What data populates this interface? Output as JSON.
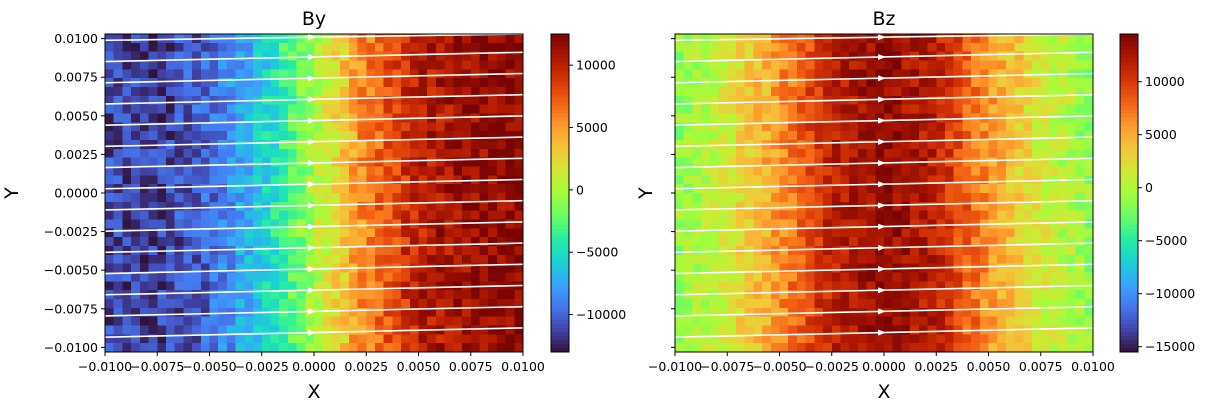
{
  "chart_data": [
    {
      "type": "heatmap",
      "title": "By",
      "xlabel": "X",
      "ylabel": "Y",
      "xlim": [
        -0.01,
        0.01
      ],
      "ylim": [
        -0.0103,
        0.0103
      ],
      "xticks": [
        -0.01,
        -0.0075,
        -0.005,
        -0.0025,
        0.0,
        0.0025,
        0.005,
        0.0075,
        0.01
      ],
      "xtick_labels": [
        "−0.0100",
        "−0.0075",
        "−0.0050",
        "−0.0025",
        "0.0000",
        "0.0025",
        "0.0050",
        "0.0075",
        "0.0100"
      ],
      "yticks": [
        0.01,
        0.0075,
        0.005,
        0.0025,
        0.0,
        -0.0025,
        -0.005,
        -0.0075,
        -0.01
      ],
      "ytick_labels": [
        "0.0100",
        "0.0075",
        "0.0050",
        "0.0025",
        "0.0000",
        "−0.0025",
        "−0.0050",
        "−0.0075",
        "−0.0100"
      ],
      "colormap": "turbo",
      "color_range": [
        -13000,
        12500
      ],
      "colorbar_ticks": [
        10000,
        5000,
        0,
        -5000,
        -10000
      ],
      "colorbar_tick_labels": [
        "10000",
        "5000",
        "0",
        "−5000",
        "−10000"
      ],
      "grid": false,
      "field_profile": {
        "x": [
          -0.01,
          -0.0075,
          -0.005,
          -0.0025,
          0.0,
          0.0025,
          0.005,
          0.0075,
          0.01
        ],
        "value": [
          -11000,
          -11500,
          -10000,
          -6000,
          0,
          6000,
          10000,
          11500,
          12000
        ]
      },
      "streamlines": {
        "color": "#ffffff",
        "direction": "+x",
        "count": 15,
        "slope": 0.03
      }
    },
    {
      "type": "heatmap",
      "title": "Bz",
      "xlabel": "X",
      "ylabel": "Y",
      "xlim": [
        -0.01,
        0.01
      ],
      "ylim": [
        -0.0103,
        0.0103
      ],
      "xticks": [
        -0.01,
        -0.0075,
        -0.005,
        -0.0025,
        0.0,
        0.0025,
        0.005,
        0.0075,
        0.01
      ],
      "xtick_labels": [
        "−0.0100",
        "−0.0075",
        "−0.0050",
        "−0.0025",
        "0.0000",
        "0.0025",
        "0.0050",
        "0.0075",
        "0.0100"
      ],
      "yticks": [
        0.01,
        0.0075,
        0.005,
        0.0025,
        0.0,
        -0.0025,
        -0.005,
        -0.0075,
        -0.01
      ],
      "ytick_labels": [],
      "colormap": "turbo",
      "color_range": [
        -15500,
        14500
      ],
      "colorbar_ticks": [
        10000,
        5000,
        0,
        -5000,
        -10000,
        -15000
      ],
      "colorbar_tick_labels": [
        "10000",
        "5000",
        "0",
        "−5000",
        "−10000",
        "−15000"
      ],
      "grid": false,
      "field_profile": {
        "x": [
          -0.01,
          -0.0075,
          -0.005,
          -0.0025,
          0.0,
          0.0025,
          0.005,
          0.0075,
          0.01
        ],
        "value": [
          -1500,
          1500,
          6000,
          11500,
          13500,
          11500,
          6000,
          1500,
          -1500
        ]
      },
      "streamlines": {
        "color": "#ffffff",
        "direction": "+x",
        "count": 15,
        "slope": 0.03
      }
    }
  ]
}
